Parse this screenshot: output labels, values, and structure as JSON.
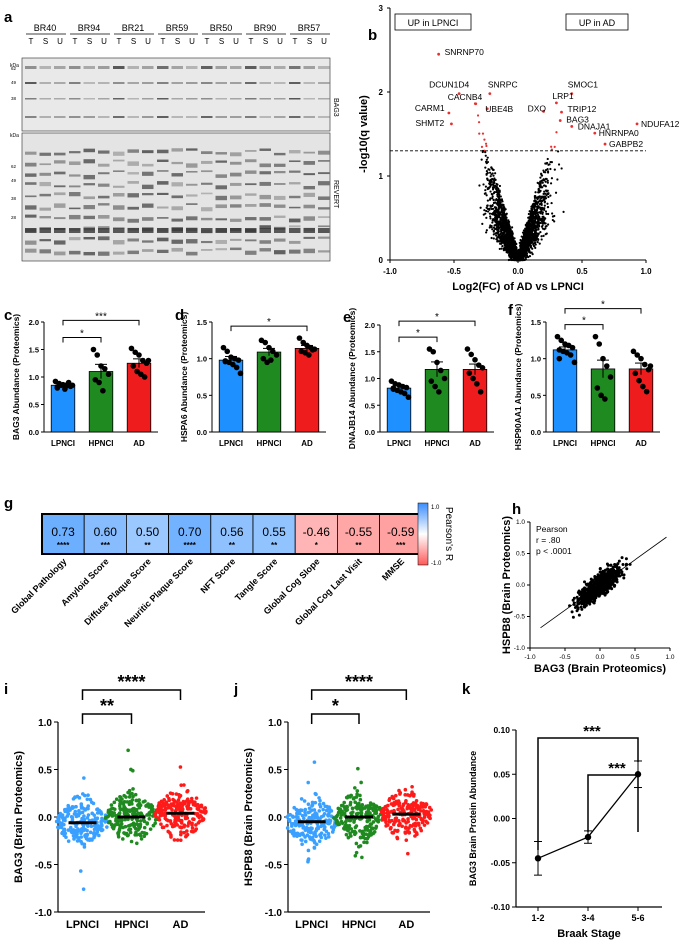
{
  "panel_letters": [
    "a",
    "b",
    "c",
    "d",
    "e",
    "f",
    "g",
    "h",
    "i",
    "j",
    "k"
  ],
  "panel_a": {
    "samples": [
      "BR40",
      "BR94",
      "BR21",
      "BR59",
      "BR50",
      "BR90",
      "BR57"
    ],
    "lane_labels": [
      "T",
      "S",
      "U"
    ],
    "kda_label": "kDa",
    "top_markers": [
      "62",
      "49",
      "38"
    ],
    "bottom_markers": [
      "62",
      "49",
      "38",
      "28"
    ],
    "top_blot_label": "BAG3",
    "bottom_blot_label": "REVERT"
  },
  "chart_data": [
    {
      "id": "b",
      "type": "scatter",
      "title": "",
      "xlabel": "Log2(FC) of AD vs LPNCI",
      "ylabel": "-log10(q value)",
      "xlim": [
        -1.0,
        1.0
      ],
      "ylim": [
        0,
        3
      ],
      "x_ticks": [
        "-1.0",
        "-0.5",
        "0.0",
        "0.5",
        "1.0"
      ],
      "y_ticks": [
        "0",
        "1",
        "2",
        "3"
      ],
      "threshold_y": 1.3,
      "annotations": [
        "UP in LPNCI",
        "UP in AD"
      ],
      "labeled_points": [
        {
          "label": "SNRNP70",
          "x": -0.62,
          "y": 2.45
        },
        {
          "label": "DCUN1D4",
          "x": -0.46,
          "y": 1.98
        },
        {
          "label": "SNRPC",
          "x": -0.22,
          "y": 1.98
        },
        {
          "label": "CACNB4",
          "x": -0.33,
          "y": 1.86
        },
        {
          "label": "UBE4B",
          "x": -0.24,
          "y": 1.8
        },
        {
          "label": "CARM1",
          "x": -0.54,
          "y": 1.75
        },
        {
          "label": "SHMT2",
          "x": -0.52,
          "y": 1.62
        },
        {
          "label": "SMOC1",
          "x": 0.42,
          "y": 1.98
        },
        {
          "label": "LRP1",
          "x": 0.3,
          "y": 1.87
        },
        {
          "label": "DXO",
          "x": 0.2,
          "y": 1.77
        },
        {
          "label": "TRIP12",
          "x": 0.34,
          "y": 1.76
        },
        {
          "label": "BAG3",
          "x": 0.33,
          "y": 1.66
        },
        {
          "label": "DNAJA1",
          "x": 0.42,
          "y": 1.59
        },
        {
          "label": "NDUFA12",
          "x": 0.93,
          "y": 1.62
        },
        {
          "label": "HNRNPA0",
          "x": 0.6,
          "y": 1.51
        },
        {
          "label": "GABPB2",
          "x": 0.68,
          "y": 1.38
        }
      ]
    },
    {
      "id": "c",
      "type": "bar",
      "ylabel": "BAG3 Abundance (Proteomics)",
      "categories": [
        "LPNCI",
        "HPNCI",
        "AD"
      ],
      "values": [
        0.85,
        1.1,
        1.25
      ],
      "errors": [
        0.04,
        0.13,
        0.08
      ],
      "colors": [
        "#1e90ff",
        "#1f8a1f",
        "#ee1c1c"
      ],
      "ylim": [
        0,
        2.0
      ],
      "y_ticks": [
        "0.0",
        "0.5",
        "1.0",
        "1.5",
        "2.0"
      ],
      "points": [
        [
          0.92,
          0.88,
          0.86,
          0.84,
          0.83,
          0.82,
          0.85,
          0.78,
          0.9,
          0.85,
          0.8
        ],
        [
          1.5,
          1.4,
          1.2,
          1.15,
          1.05,
          0.95,
          0.9,
          0.75
        ],
        [
          1.52,
          1.45,
          1.4,
          1.3,
          1.25,
          1.2,
          1.1,
          1.05,
          1.0,
          1.3
        ]
      ],
      "significance": [
        {
          "from": 0,
          "to": 1,
          "label": "*"
        },
        {
          "from": 0,
          "to": 2,
          "label": "***"
        }
      ]
    },
    {
      "id": "d",
      "type": "bar",
      "ylabel": "HSPA6 Abundance (Proteomics)",
      "categories": [
        "LPNCI",
        "HPNCI",
        "AD"
      ],
      "values": [
        0.98,
        1.09,
        1.14
      ],
      "errors": [
        0.05,
        0.05,
        0.04
      ],
      "colors": [
        "#1e90ff",
        "#1f8a1f",
        "#ee1c1c"
      ],
      "ylim": [
        0,
        1.5
      ],
      "y_ticks": [
        "0.0",
        "0.5",
        "1.0",
        "1.5"
      ],
      "points": [
        [
          1.15,
          1.1,
          1.02,
          1.0,
          0.98,
          0.97,
          0.95,
          0.92,
          0.88,
          0.8,
          0.96
        ],
        [
          1.25,
          1.22,
          1.15,
          1.1,
          1.05,
          1.0,
          0.95,
          0.98
        ],
        [
          1.28,
          1.22,
          1.18,
          1.15,
          1.13,
          1.1,
          1.08,
          1.05,
          1.12
        ]
      ],
      "significance": [
        {
          "from": 0,
          "to": 2,
          "label": "*"
        }
      ]
    },
    {
      "id": "e",
      "type": "bar",
      "ylabel": "DNAJB14 Abundance (Proteomics)",
      "categories": [
        "LPNCI",
        "HPNCI",
        "AD"
      ],
      "values": [
        0.82,
        1.17,
        1.17
      ],
      "errors": [
        0.04,
        0.14,
        0.1
      ],
      "colors": [
        "#1e90ff",
        "#1f8a1f",
        "#ee1c1c"
      ],
      "ylim": [
        0,
        2.0
      ],
      "y_ticks": [
        "0.0",
        "0.5",
        "1.0",
        "1.5",
        "2.0"
      ],
      "points": [
        [
          0.95,
          0.9,
          0.88,
          0.85,
          0.83,
          0.8,
          0.78,
          0.75,
          0.72,
          0.65,
          0.82
        ],
        [
          1.55,
          1.5,
          1.3,
          1.15,
          1.0,
          0.95,
          0.85,
          0.75
        ],
        [
          1.55,
          1.45,
          1.35,
          1.25,
          1.2,
          1.1,
          1.0,
          0.9,
          0.75
        ]
      ],
      "significance": [
        {
          "from": 0,
          "to": 1,
          "label": "*"
        },
        {
          "from": 0,
          "to": 2,
          "label": "*"
        }
      ]
    },
    {
      "id": "f",
      "type": "bar",
      "ylabel": "HSP90AA1 Abundance (Proteomics)",
      "categories": [
        "LPNCI",
        "HPNCI",
        "AD"
      ],
      "values": [
        1.12,
        0.86,
        0.86
      ],
      "errors": [
        0.04,
        0.12,
        0.08
      ],
      "colors": [
        "#1e90ff",
        "#1f8a1f",
        "#ee1c1c"
      ],
      "ylim": [
        0,
        1.5
      ],
      "y_ticks": [
        "0.0",
        "0.5",
        "1.0",
        "1.5"
      ],
      "points": [
        [
          1.3,
          1.25,
          1.2,
          1.18,
          1.15,
          1.12,
          1.1,
          1.08,
          1.05,
          0.95,
          1.0
        ],
        [
          1.3,
          1.2,
          1.0,
          0.9,
          0.75,
          0.6,
          0.5,
          0.45
        ],
        [
          1.1,
          1.05,
          1.0,
          0.92,
          0.85,
          0.8,
          0.7,
          0.62,
          0.55,
          0.9
        ]
      ],
      "significance": [
        {
          "from": 0,
          "to": 1,
          "label": "*"
        },
        {
          "from": 0,
          "to": 2,
          "label": "*"
        }
      ]
    },
    {
      "id": "g",
      "type": "heatmap",
      "legend_label": "Pearson's R",
      "legend_ticks": [
        "1.0",
        "-1.0"
      ],
      "cells": [
        {
          "label": "Global Pathology",
          "r": "0.73",
          "sig": "****",
          "v": 0.73
        },
        {
          "label": "Amyloid Score",
          "r": "0.60",
          "sig": "***",
          "v": 0.6
        },
        {
          "label": "Diffuse Plaque Score",
          "r": "0.50",
          "sig": "**",
          "v": 0.5
        },
        {
          "label": "Neuritic Plaque Score",
          "r": "0.70",
          "sig": "****",
          "v": 0.7
        },
        {
          "label": "NFT Score",
          "r": "0.56",
          "sig": "**",
          "v": 0.56
        },
        {
          "label": "Tangle Score",
          "r": "0.55",
          "sig": "**",
          "v": 0.55
        },
        {
          "label": "Global Cog Slope",
          "r": "-0.46",
          "sig": "*",
          "v": -0.46
        },
        {
          "label": "Global Cog Last Visit",
          "r": "-0.55",
          "sig": "**",
          "v": -0.55
        },
        {
          "label": "MMSE",
          "r": "-0.59",
          "sig": "***",
          "v": -0.59
        }
      ]
    },
    {
      "id": "h",
      "type": "scatter",
      "xlabel": "BAG3 (Brain Proteomics)",
      "ylabel": "HSPB8 (Brain Proteomics)",
      "xlim": [
        -1.0,
        1.0
      ],
      "ylim": [
        -1.0,
        1.0
      ],
      "x_ticks": [
        "-1.0",
        "-0.5",
        "0.0",
        "0.5",
        "1.0"
      ],
      "y_ticks": [
        "-1.0",
        "-0.5",
        "0.0",
        "0.5",
        "1.0"
      ],
      "stats": [
        "Pearson",
        "r = .80",
        "p < .0001"
      ],
      "regression": {
        "slope": 0.8,
        "intercept": 0.0
      }
    },
    {
      "id": "i",
      "type": "scatter",
      "ylabel": "BAG3 (Brain Proteomics)",
      "categories": [
        "LPNCI",
        "HPNCI",
        "AD"
      ],
      "medians": [
        -0.06,
        0.0,
        0.04
      ],
      "colors": [
        "#3aa0ff",
        "#1f8a1f",
        "#ff1a1a"
      ],
      "ylim": [
        -1.0,
        1.0
      ],
      "y_ticks": [
        "-1.0",
        "-0.5",
        "0.0",
        "0.5",
        "1.0"
      ],
      "significance": [
        {
          "from": 0,
          "to": 1,
          "label": "**"
        },
        {
          "from": 0,
          "to": 2,
          "label": "****"
        }
      ]
    },
    {
      "id": "j",
      "type": "scatter",
      "ylabel": "HSPB8 (Brain Proteomics)",
      "categories": [
        "LPNCI",
        "HPNCI",
        "AD"
      ],
      "medians": [
        -0.05,
        0.0,
        0.03
      ],
      "colors": [
        "#3aa0ff",
        "#1f8a1f",
        "#ff1a1a"
      ],
      "ylim": [
        -1.0,
        1.0
      ],
      "y_ticks": [
        "-1.0",
        "-0.5",
        "0.0",
        "0.5",
        "1.0"
      ],
      "significance": [
        {
          "from": 0,
          "to": 1,
          "label": "*"
        },
        {
          "from": 0,
          "to": 2,
          "label": "****"
        }
      ]
    },
    {
      "id": "k",
      "type": "line",
      "xlabel": "Braak Stage",
      "ylabel": "BAG3 Brain Protein Abundance",
      "categories": [
        "1-2",
        "3-4",
        "5-6"
      ],
      "values": [
        -0.045,
        -0.021,
        0.05
      ],
      "errors": [
        0.019,
        0.007,
        0.015
      ],
      "ylim": [
        -0.1,
        0.1
      ],
      "y_ticks": [
        "-0.10",
        "-0.05",
        "0.00",
        "0.05",
        "0.10"
      ],
      "significance": [
        {
          "from": 0,
          "to": 2,
          "label": "***"
        },
        {
          "from": 1,
          "to": 2,
          "label": "***"
        }
      ]
    }
  ]
}
